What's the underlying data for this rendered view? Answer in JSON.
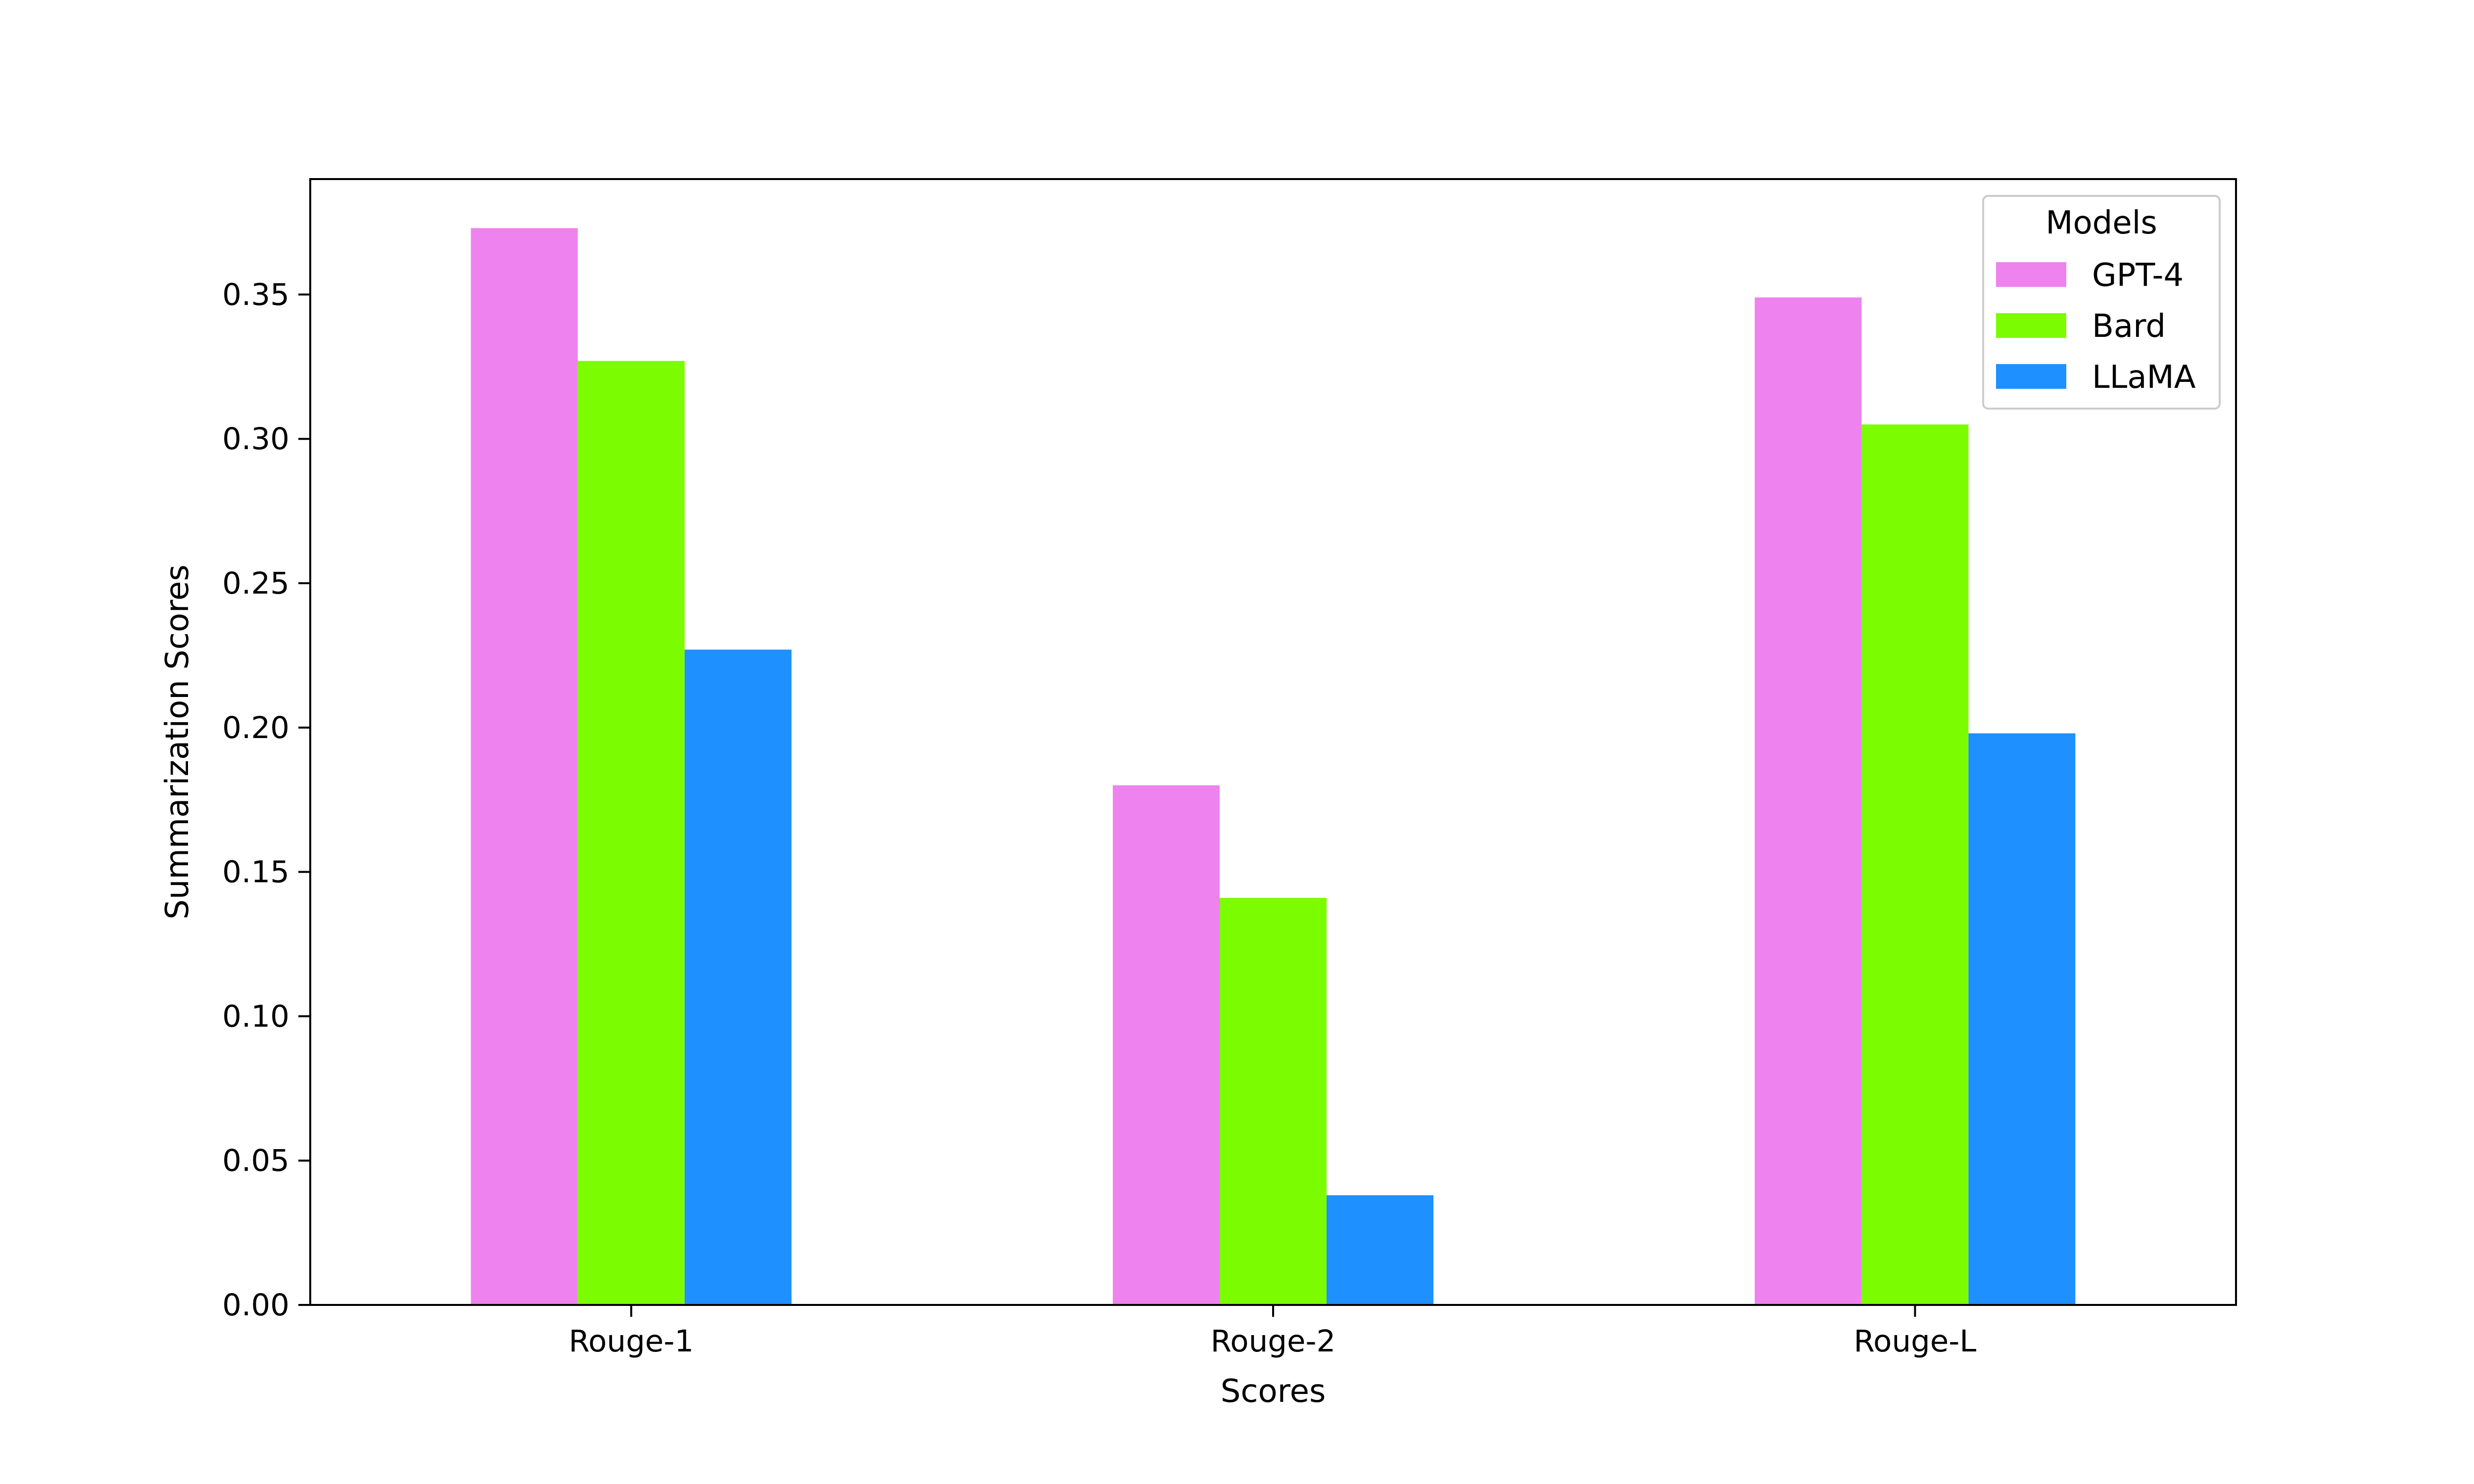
{
  "chart_data": {
    "type": "bar",
    "title": "",
    "xlabel": "Scores",
    "ylabel": "Summarization Scores",
    "categories": [
      "Rouge-1",
      "Rouge-2",
      "Rouge-L"
    ],
    "series": [
      {
        "name": "GPT-4",
        "color": "#ee82ee",
        "values": [
          0.373,
          0.18,
          0.349
        ]
      },
      {
        "name": "Bard",
        "color": "#7cfc00",
        "values": [
          0.327,
          0.141,
          0.305
        ]
      },
      {
        "name": "LLaMA",
        "color": "#1e90ff",
        "values": [
          0.227,
          0.038,
          0.198
        ]
      }
    ],
    "ylim": [
      0,
      0.39
    ],
    "yticks": [
      0.0,
      0.05,
      0.1,
      0.15,
      0.2,
      0.25,
      0.3,
      0.35
    ],
    "ytick_labels": [
      "0.00",
      "0.05",
      "0.10",
      "0.15",
      "0.20",
      "0.25",
      "0.30",
      "0.35"
    ],
    "grid": false,
    "legend": {
      "title": "Models",
      "position": "top-right"
    }
  }
}
